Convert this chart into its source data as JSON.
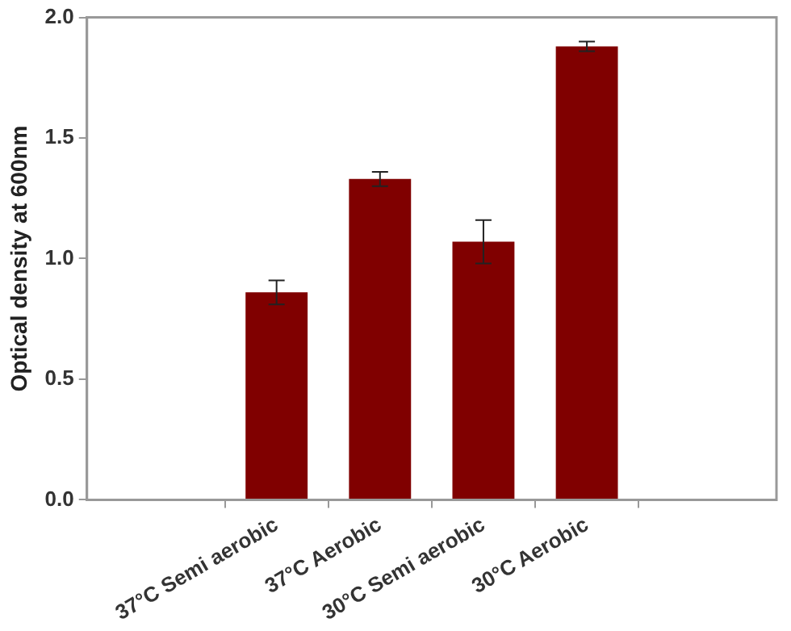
{
  "chart_data": {
    "type": "bar",
    "ylabel": "Optical density at 600nm",
    "categories": [
      "37°C Semi aerobic",
      "37°C Aerobic",
      "30°C Semi aerobic",
      "30°C Aerobic"
    ],
    "values": [
      0.86,
      1.33,
      1.07,
      1.88
    ],
    "errors": [
      0.05,
      0.03,
      0.09,
      0.02
    ],
    "color": "#800000",
    "ylim": [
      0,
      2
    ],
    "yticks": [
      {
        "value": 0,
        "label": "0.0"
      },
      {
        "value": 0.5,
        "label": "0.5"
      },
      {
        "value": 1,
        "label": "1.0"
      },
      {
        "value": 1.5,
        "label": "1.5"
      },
      {
        "value": 2,
        "label": "2.0"
      }
    ],
    "grid": false,
    "legend": false
  }
}
